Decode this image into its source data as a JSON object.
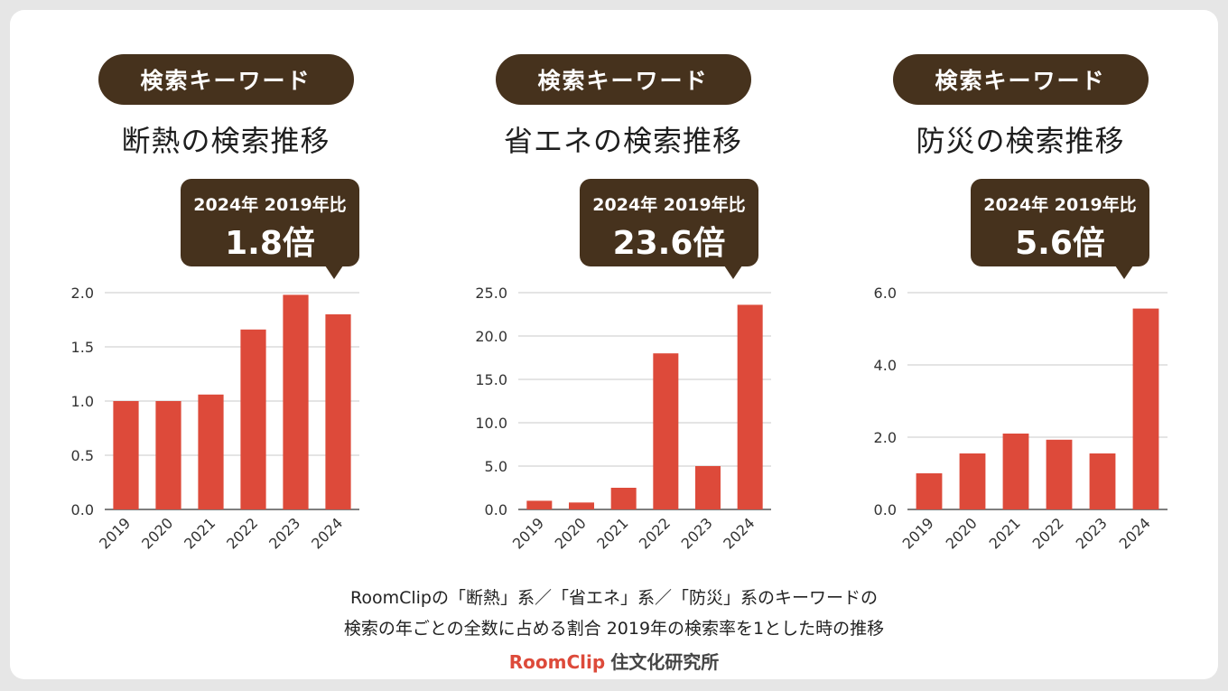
{
  "header_label": "検索キーワード",
  "panels": [
    {
      "title": "断熱の検索推移",
      "callout_sub": "2024年 2019年比",
      "callout_value": "1.8倍"
    },
    {
      "title": "省エネの検索推移",
      "callout_sub": "2024年 2019年比",
      "callout_value": "23.6倍"
    },
    {
      "title": "防災の検索推移",
      "callout_sub": "2024年 2019年比",
      "callout_value": "5.6倍"
    }
  ],
  "footer": {
    "line1": "RoomClipの「断熱」系／「省エネ」系／「防災」系のキーワードの",
    "line2": "検索の年ごとの全数に占める割合 2019年の検索率を1とした時の推移"
  },
  "brand": {
    "logo": "RoomClip",
    "org": "住文化研究所"
  },
  "colors": {
    "bar": "#dd4a3a",
    "dark": "#46321d"
  },
  "chart_data": [
    {
      "type": "bar",
      "categories": [
        "2019",
        "2020",
        "2021",
        "2022",
        "2023",
        "2024"
      ],
      "values": [
        1.0,
        1.0,
        1.06,
        1.66,
        1.98,
        1.8
      ],
      "ylim": [
        0,
        2.0
      ],
      "yticks": [
        "0.0",
        "0.5",
        "1.0",
        "1.5",
        "2.0"
      ],
      "ytick_values": [
        0,
        0.5,
        1.0,
        1.5,
        2.0
      ],
      "grid": true
    },
    {
      "type": "bar",
      "categories": [
        "2019",
        "2020",
        "2021",
        "2022",
        "2023",
        "2024"
      ],
      "values": [
        1.0,
        0.8,
        2.5,
        18.0,
        5.0,
        23.6
      ],
      "ylim": [
        0,
        25.0
      ],
      "yticks": [
        "0.0",
        "5.0",
        "10.0",
        "15.0",
        "20.0",
        "25.0"
      ],
      "ytick_values": [
        0,
        5,
        10,
        15,
        20,
        25
      ],
      "grid": true
    },
    {
      "type": "bar",
      "categories": [
        "2019",
        "2020",
        "2021",
        "2022",
        "2023",
        "2024"
      ],
      "values": [
        1.0,
        1.55,
        2.1,
        1.93,
        1.55,
        5.56
      ],
      "ylim": [
        0,
        6.0
      ],
      "yticks": [
        "0.0",
        "2.0",
        "4.0",
        "6.0"
      ],
      "ytick_values": [
        0,
        2,
        4,
        6
      ],
      "grid": true
    }
  ]
}
